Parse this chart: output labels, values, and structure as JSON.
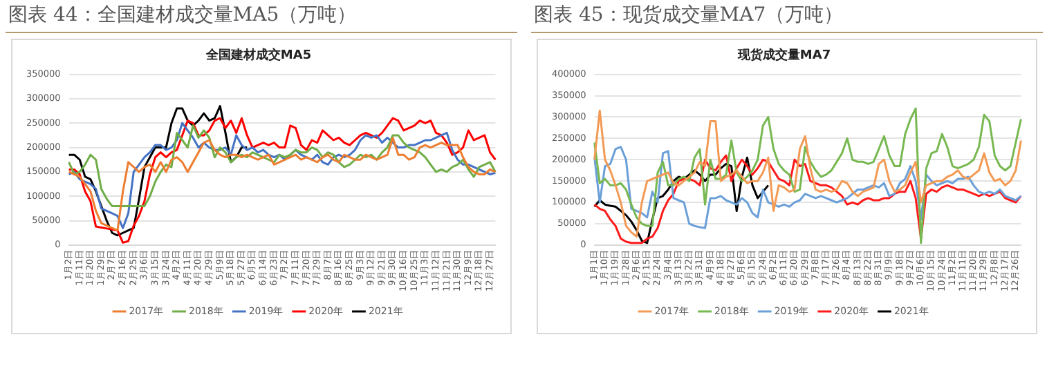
{
  "chart_data": [
    {
      "type": "line",
      "title": "图表 44：全国建材成交量MA5（万吨）",
      "subtitle": "全国建材成交MA5",
      "categories": [
        "1月2日",
        null,
        "1月11日",
        null,
        "1月20日",
        null,
        "1月29日",
        null,
        "2月7日",
        null,
        "2月16日",
        null,
        "2月25日",
        null,
        "3月6日",
        null,
        "3月15日",
        null,
        "3月24日",
        null,
        "4月2日",
        null,
        "4月11日",
        null,
        "4月20日",
        null,
        "4月29日",
        null,
        "5月9日",
        null,
        "5月18日",
        null,
        "5月27日",
        null,
        "6月5日",
        null,
        "6月14日",
        null,
        "6月23日",
        null,
        "7月2日",
        null,
        "7月11日",
        null,
        "7月20日",
        null,
        "7月29日",
        null,
        "8月7日",
        null,
        "8月16日",
        null,
        "8月25日",
        null,
        "9月3日",
        null,
        "9月12日",
        null,
        "9月21日",
        null,
        "9月30日",
        null,
        "10月16日",
        null,
        "10月25日",
        null,
        "11月3日",
        null,
        "11月12日",
        null,
        "11月21日",
        null,
        "11月30日",
        null,
        "12月9日",
        null,
        "12月18日",
        null,
        "12月27日",
        null
      ],
      "series": [
        {
          "name": "2017年",
          "color": "#ed7d31",
          "values": [
            150000,
            145000,
            140000,
            125000,
            110000,
            70000,
            45000,
            40000,
            35000,
            30000,
            110000,
            170000,
            160000,
            150000,
            160000,
            165000,
            150000,
            170000,
            150000,
            175000,
            180000,
            170000,
            150000,
            170000,
            190000,
            210000,
            215000,
            195000,
            185000,
            180000,
            185000,
            185000,
            180000,
            185000,
            180000,
            175000,
            180000,
            185000,
            165000,
            170000,
            175000,
            180000,
            185000,
            175000,
            180000,
            175000,
            170000,
            180000,
            185000,
            175000,
            170000,
            185000,
            180000,
            175000,
            175000,
            185000,
            180000,
            175000,
            180000,
            185000,
            220000,
            185000,
            185000,
            175000,
            180000,
            200000,
            205000,
            200000,
            205000,
            210000,
            205000,
            205000,
            205000,
            180000,
            160000,
            150000,
            145000,
            145000,
            155000,
            150000
          ]
        },
        {
          "name": "2018年",
          "color": "#70ad47",
          "values": [
            170000,
            145000,
            150000,
            165000,
            185000,
            175000,
            115000,
            95000,
            80000,
            80000,
            80000,
            80000,
            80000,
            80000,
            80000,
            100000,
            130000,
            150000,
            165000,
            160000,
            230000,
            215000,
            200000,
            245000,
            220000,
            235000,
            220000,
            180000,
            200000,
            190000,
            170000,
            180000,
            185000,
            180000,
            190000,
            185000,
            180000,
            175000,
            170000,
            185000,
            180000,
            185000,
            195000,
            190000,
            190000,
            200000,
            195000,
            180000,
            190000,
            185000,
            170000,
            160000,
            165000,
            175000,
            185000,
            180000,
            185000,
            175000,
            190000,
            200000,
            225000,
            225000,
            210000,
            200000,
            195000,
            190000,
            180000,
            165000,
            150000,
            155000,
            150000,
            160000,
            165000,
            175000,
            155000,
            140000,
            160000,
            165000,
            170000,
            150000
          ]
        },
        {
          "name": "2019年",
          "color": "#4472c4",
          "values": [
            145000,
            150000,
            135000,
            130000,
            125000,
            115000,
            75000,
            70000,
            65000,
            60000,
            35000,
            65000,
            150000,
            165000,
            180000,
            190000,
            205000,
            205000,
            195000,
            200000,
            215000,
            250000,
            235000,
            220000,
            200000,
            210000,
            200000,
            195000,
            195000,
            200000,
            185000,
            225000,
            205000,
            195000,
            200000,
            190000,
            195000,
            185000,
            180000,
            185000,
            175000,
            185000,
            195000,
            185000,
            180000,
            175000,
            185000,
            170000,
            165000,
            180000,
            185000,
            180000,
            185000,
            195000,
            215000,
            225000,
            220000,
            225000,
            210000,
            220000,
            210000,
            200000,
            200000,
            205000,
            205000,
            210000,
            215000,
            215000,
            220000,
            225000,
            230000,
            195000,
            175000,
            165000,
            165000,
            160000,
            155000,
            150000,
            145000,
            148000
          ]
        },
        {
          "name": "2020年",
          "color": "#ff0000",
          "values": [
            155000,
            155000,
            145000,
            110000,
            90000,
            38000,
            36000,
            34000,
            32000,
            30000,
            5000,
            8000,
            40000,
            60000,
            90000,
            145000,
            180000,
            190000,
            180000,
            190000,
            195000,
            225000,
            255000,
            250000,
            225000,
            225000,
            235000,
            255000,
            260000,
            240000,
            255000,
            230000,
            260000,
            225000,
            200000,
            205000,
            210000,
            205000,
            210000,
            200000,
            200000,
            245000,
            240000,
            205000,
            195000,
            215000,
            210000,
            235000,
            225000,
            215000,
            220000,
            210000,
            205000,
            215000,
            225000,
            230000,
            225000,
            220000,
            230000,
            245000,
            260000,
            255000,
            235000,
            240000,
            245000,
            255000,
            250000,
            255000,
            230000,
            225000,
            210000,
            185000,
            190000,
            200000,
            235000,
            215000,
            220000,
            225000,
            190000,
            175000
          ]
        },
        {
          "name": "2021年",
          "color": "#000000",
          "values": [
            185000,
            185000,
            175000,
            140000,
            135000,
            110000,
            80000,
            50000,
            25000,
            20000,
            25000,
            30000,
            35000,
            95000,
            160000,
            180000,
            200000,
            200000,
            200000,
            250000,
            280000,
            280000,
            255000,
            245000,
            255000,
            270000,
            255000,
            260000,
            285000,
            230000,
            170000,
            180000,
            200000,
            200000,
            null,
            null,
            null,
            null,
            null,
            null,
            null,
            null,
            null,
            null,
            null,
            null,
            null,
            null,
            null,
            null,
            null,
            null,
            null,
            null,
            null,
            null,
            null,
            null,
            null,
            null,
            null,
            null,
            null,
            null,
            null,
            null,
            null,
            null,
            null,
            null,
            null,
            null,
            null,
            null,
            null,
            null,
            null,
            null,
            null,
            null
          ]
        }
      ],
      "ylim": [
        0,
        350000
      ],
      "yticks": [
        0,
        50000,
        100000,
        150000,
        200000,
        250000,
        300000,
        350000
      ],
      "grid": "y",
      "legend": "bottom",
      "marker": "none",
      "line_style": "solid"
    },
    {
      "type": "line",
      "title": "图表 45：现货成交量MA7（万吨）",
      "subtitle": "现货成交量MA7",
      "categories": [
        "1月1日",
        null,
        "1月10日",
        null,
        "1月19日",
        null,
        "1月28日",
        null,
        "2月6日",
        null,
        "2月15日",
        null,
        "2月24日",
        null,
        "3月4日",
        null,
        "3月13日",
        null,
        "3月22日",
        null,
        "3月31日",
        null,
        "4月9日",
        null,
        "4月18日",
        null,
        "4月27日",
        null,
        "5月6日",
        null,
        "5月15日",
        null,
        "5月24日",
        null,
        "6月2日",
        null,
        "6月11日",
        null,
        "6月20日",
        null,
        "6月29日",
        null,
        "7月8日",
        null,
        "7月17日",
        null,
        "7月26日",
        null,
        "8月4日",
        null,
        "8月13日",
        null,
        "8月22日",
        null,
        "8月31日",
        null,
        "9月9日",
        null,
        "9月18日",
        null,
        "9月27日",
        null,
        "10月6日",
        null,
        "10月15日",
        null,
        "10月24日",
        null,
        "11月2日",
        null,
        "11月11日",
        null,
        "11月20日",
        null,
        "11月29日",
        null,
        "12月8日",
        null,
        "12月17日",
        null,
        "12月26日",
        null
      ],
      "series": [
        {
          "name": "2017年",
          "color": "#f39a55",
          "values": [
            200000,
            315000,
            200000,
            175000,
            140000,
            100000,
            45000,
            30000,
            20000,
            100000,
            150000,
            155000,
            160000,
            165000,
            170000,
            145000,
            140000,
            150000,
            160000,
            170000,
            195000,
            185000,
            290000,
            290000,
            150000,
            160000,
            165000,
            175000,
            160000,
            145000,
            150000,
            150000,
            170000,
            205000,
            80000,
            140000,
            135000,
            125000,
            130000,
            225000,
            255000,
            180000,
            130000,
            125000,
            130000,
            125000,
            130000,
            150000,
            145000,
            125000,
            115000,
            125000,
            130000,
            135000,
            190000,
            200000,
            150000,
            125000,
            130000,
            140000,
            170000,
            195000,
            100000,
            140000,
            145000,
            150000,
            150000,
            160000,
            165000,
            175000,
            160000,
            155000,
            165000,
            175000,
            215000,
            170000,
            150000,
            155000,
            140000,
            150000,
            175000,
            245000
          ]
        },
        {
          "name": "2018年",
          "color": "#77b851",
          "values": [
            240000,
            145000,
            155000,
            140000,
            140000,
            145000,
            130000,
            95000,
            65000,
            50000,
            45000,
            45000,
            170000,
            195000,
            140000,
            140000,
            155000,
            160000,
            150000,
            205000,
            225000,
            95000,
            200000,
            155000,
            155000,
            165000,
            245000,
            170000,
            150000,
            160000,
            175000,
            200000,
            280000,
            300000,
            225000,
            190000,
            175000,
            165000,
            125000,
            130000,
            230000,
            195000,
            175000,
            160000,
            165000,
            175000,
            195000,
            215000,
            250000,
            200000,
            195000,
            195000,
            190000,
            195000,
            225000,
            255000,
            210000,
            185000,
            185000,
            260000,
            295000,
            320000,
            5000,
            180000,
            215000,
            220000,
            260000,
            230000,
            185000,
            180000,
            185000,
            190000,
            200000,
            230000,
            305000,
            290000,
            210000,
            185000,
            175000,
            185000,
            240000,
            295000
          ]
        },
        {
          "name": "2019年",
          "color": "#6a9fd8",
          "values": [
            205000,
            100000,
            185000,
            190000,
            225000,
            230000,
            200000,
            85000,
            80000,
            75000,
            65000,
            125000,
            100000,
            215000,
            220000,
            110000,
            105000,
            100000,
            50000,
            45000,
            42000,
            40000,
            110000,
            110000,
            115000,
            105000,
            100000,
            95000,
            110000,
            100000,
            75000,
            65000,
            130000,
            100000,
            95000,
            90000,
            95000,
            90000,
            100000,
            105000,
            120000,
            115000,
            110000,
            115000,
            110000,
            105000,
            100000,
            105000,
            110000,
            120000,
            130000,
            130000,
            135000,
            140000,
            135000,
            145000,
            115000,
            120000,
            145000,
            155000,
            185000,
            150000,
            60000,
            165000,
            150000,
            140000,
            145000,
            150000,
            145000,
            155000,
            155000,
            160000,
            140000,
            125000,
            120000,
            125000,
            120000,
            130000,
            115000,
            110000,
            105000,
            115000
          ]
        },
        {
          "name": "2020年",
          "color": "#ff1a1a",
          "values": [
            95000,
            85000,
            80000,
            60000,
            45000,
            15000,
            8000,
            5000,
            5000,
            5000,
            15000,
            20000,
            40000,
            80000,
            105000,
            120000,
            150000,
            155000,
            155000,
            150000,
            140000,
            200000,
            180000,
            175000,
            195000,
            210000,
            150000,
            180000,
            200000,
            185000,
            165000,
            180000,
            200000,
            195000,
            175000,
            155000,
            150000,
            140000,
            200000,
            185000,
            190000,
            150000,
            145000,
            140000,
            140000,
            135000,
            125000,
            115000,
            95000,
            100000,
            95000,
            105000,
            110000,
            105000,
            105000,
            110000,
            110000,
            120000,
            125000,
            125000,
            150000,
            110000,
            15000,
            120000,
            130000,
            125000,
            135000,
            140000,
            135000,
            130000,
            130000,
            125000,
            120000,
            115000,
            120000,
            115000,
            120000,
            125000,
            110000,
            105000,
            100000,
            115000
          ]
        },
        {
          "name": "2021年",
          "color": "#000000",
          "values": [
            90000,
            105000,
            95000,
            92000,
            90000,
            80000,
            70000,
            55000,
            35000,
            10000,
            5000,
            60000,
            110000,
            115000,
            130000,
            150000,
            160000,
            155000,
            165000,
            175000,
            165000,
            150000,
            165000,
            165000,
            180000,
            190000,
            185000,
            80000,
            160000,
            205000,
            140000,
            110000,
            125000,
            140000,
            null,
            null,
            null,
            null,
            null,
            null,
            null,
            null,
            null,
            null,
            null,
            null,
            null,
            null,
            null,
            null,
            null,
            null,
            null,
            null,
            null,
            null,
            null,
            null,
            null,
            null,
            null,
            null,
            null,
            null,
            null,
            null,
            null,
            null,
            null,
            null,
            null,
            null,
            null,
            null,
            null,
            null,
            null,
            null,
            null,
            null,
            null,
            null
          ]
        }
      ],
      "ylim": [
        0,
        400000
      ],
      "yticks": [
        0,
        50000,
        100000,
        150000,
        200000,
        250000,
        300000,
        350000,
        400000
      ],
      "grid": "y",
      "legend": "bottom",
      "marker": "none",
      "line_style": "solid"
    }
  ]
}
